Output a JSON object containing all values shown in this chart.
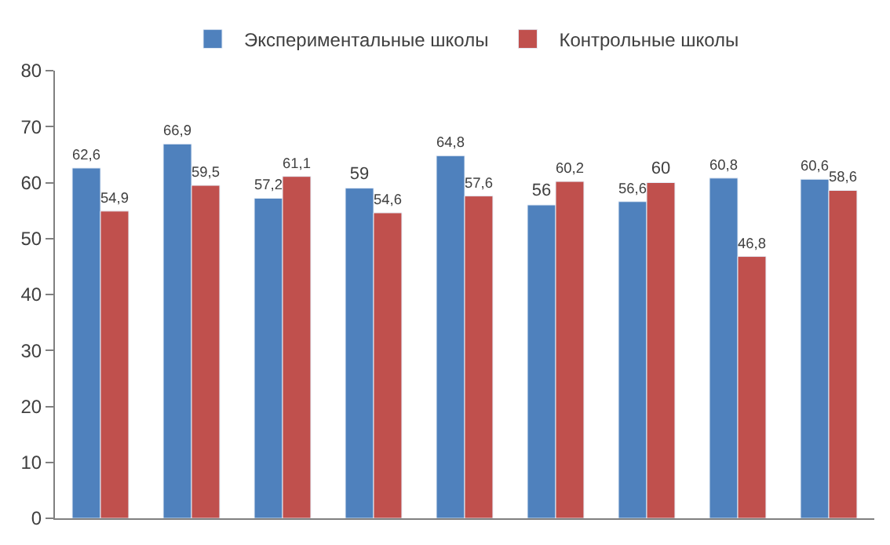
{
  "chart_data": {
    "type": "bar",
    "categories": [
      null,
      null,
      null,
      null,
      null,
      null,
      null,
      null,
      null
    ],
    "series": [
      {
        "name": "Экспериментальные школы",
        "color": "#4f81bd",
        "values": [
          62.6,
          66.9,
          57.2,
          59,
          64.8,
          56,
          56.6,
          60.8,
          60.6
        ],
        "value_labels": [
          "62,6",
          "66,9",
          "57,2",
          "59",
          "64,8",
          "56",
          "56,6",
          "60,8",
          "60,6"
        ]
      },
      {
        "name": "Контрольные школы",
        "color": "#c0504d",
        "values": [
          54.9,
          59.5,
          61.1,
          54.6,
          57.6,
          60.2,
          60,
          46.8,
          58.6
        ],
        "value_labels": [
          "54,9",
          "59,5",
          "61,1",
          "54,6",
          "57,6",
          "60,2",
          "60",
          "46,8",
          "58,6"
        ]
      }
    ],
    "ylim": [
      0,
      80
    ],
    "yticks": [
      0,
      10,
      20,
      30,
      40,
      50,
      60,
      70,
      80
    ],
    "legend": "top",
    "tick_labels": "y",
    "grid": false
  }
}
